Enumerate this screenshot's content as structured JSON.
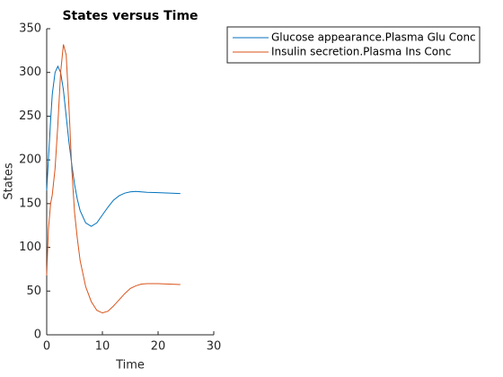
{
  "chart_data": {
    "type": "line",
    "title": "States versus Time",
    "xlabel": "Time",
    "ylabel": "States",
    "x": [
      0,
      0.3,
      0.7,
      1,
      1.5,
      2,
      2.5,
      3,
      3.5,
      4,
      4.5,
      5,
      5.5,
      6,
      7,
      8,
      9,
      10,
      11,
      12,
      13,
      14,
      15,
      16,
      17,
      18,
      20,
      22,
      24
    ],
    "series": [
      {
        "name": "Glucose appearance.Plasma Glu Conc",
        "color": "#0072bd",
        "values": [
          165,
          200,
          245,
          275,
          300,
          307,
          300,
          280,
          250,
          220,
          195,
          172,
          155,
          142,
          128,
          124,
          128,
          137,
          146,
          154,
          159,
          162,
          163.5,
          164,
          163.5,
          163,
          162.5,
          162,
          161.5
        ]
      },
      {
        "name": "Insulin secretion.Plasma Ins Conc",
        "color": "#d95319",
        "values": [
          68,
          120,
          150,
          160,
          190,
          240,
          300,
          332,
          320,
          260,
          190,
          140,
          110,
          85,
          55,
          38,
          28,
          25,
          27,
          33,
          40,
          47,
          53,
          56,
          58,
          58.5,
          58.5,
          58,
          57.5
        ]
      }
    ],
    "xlim": [
      0,
      30
    ],
    "xticks": [
      0,
      10,
      20,
      30
    ],
    "ylim": [
      0,
      350
    ],
    "yticks": [
      0,
      50,
      100,
      150,
      200,
      250,
      300,
      350
    ],
    "legend": "outside-top-right"
  }
}
